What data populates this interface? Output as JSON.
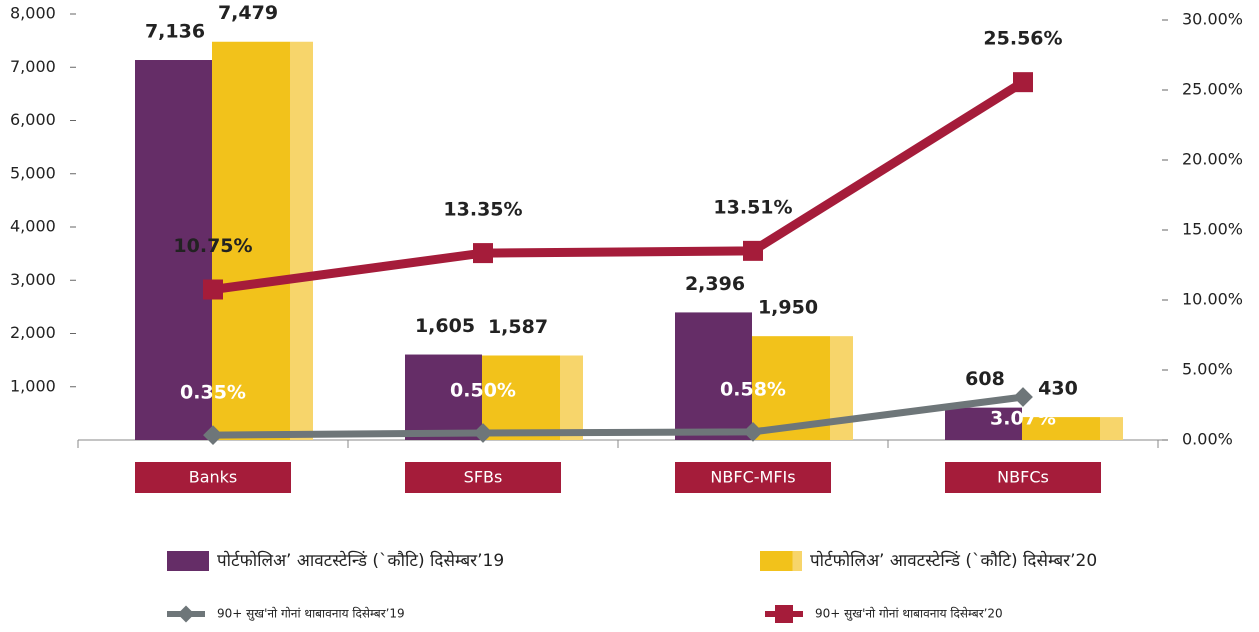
{
  "chart_data": {
    "type": "bar",
    "categories": [
      "Banks",
      "SFBs",
      "NBFC-MFIs",
      "NBFCs"
    ],
    "series": [
      {
        "name": "पोर्टफोलिअ’ आवटस्टेन्डिं (`कौटि) दिसेम्बर’19",
        "type": "bar",
        "color": "#652d67",
        "axis": "y",
        "values": [
          7136,
          1605,
          2396,
          608
        ],
        "value_labels": [
          "7,136",
          "1,605",
          "2,396",
          "608"
        ]
      },
      {
        "name": "पोर्टफोलिअ’ आवटस्टेन्डिं (`कौटि) दिसेम्बर’20",
        "type": "bar",
        "color": "#f2c21b",
        "axis": "y",
        "values": [
          7479,
          1587,
          1950,
          430
        ],
        "value_labels": [
          "7,479",
          "1,587",
          "1,950",
          "430"
        ]
      },
      {
        "name": "90+ सुख'नो गोनां थाबावनाय दिसेम्बर’19",
        "type": "line",
        "color": "#6e7679",
        "axis": "y2",
        "values": [
          0.35,
          0.5,
          0.58,
          3.07
        ],
        "value_labels": [
          "0.35%",
          "0.50%",
          "0.58%",
          "3.07%"
        ]
      },
      {
        "name": "90+ सुख'नो गोनां थाबावनाय दिसेम्बर’20",
        "type": "line",
        "color": "#a51c3a",
        "axis": "y2",
        "values": [
          10.75,
          13.35,
          13.51,
          25.56
        ],
        "value_labels": [
          "10.75%",
          "13.35%",
          "13.51%",
          "25.56%"
        ]
      }
    ],
    "ylim": [
      0,
      8000
    ],
    "yticks": [
      {
        "value": 1000,
        "label": "1,000"
      },
      {
        "value": 2000,
        "label": "2,000"
      },
      {
        "value": 3000,
        "label": "3,000"
      },
      {
        "value": 4000,
        "label": "4,000"
      },
      {
        "value": 5000,
        "label": "5,000"
      },
      {
        "value": 6000,
        "label": "6,000"
      },
      {
        "value": 7000,
        "label": "7,000"
      },
      {
        "value": 8000,
        "label": "8,000"
      }
    ],
    "y2lim": [
      0,
      30
    ],
    "y2ticks": [
      {
        "value": 0,
        "label": "0.00%"
      },
      {
        "value": 5,
        "label": "5.00%"
      },
      {
        "value": 10,
        "label": "10.00%"
      },
      {
        "value": 15,
        "label": "15.00%"
      },
      {
        "value": 20,
        "label": "20.00%"
      },
      {
        "value": 25,
        "label": "25.00%"
      },
      {
        "value": 30,
        "label": "30.00%"
      }
    ]
  }
}
